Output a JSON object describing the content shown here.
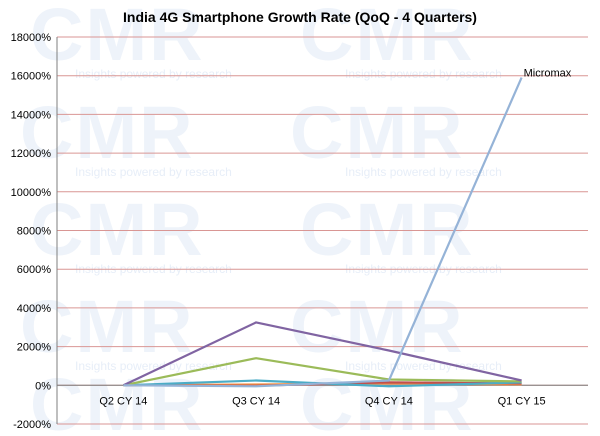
{
  "chart_data": {
    "type": "line",
    "title": "India 4G Smartphone Growth Rate (QoQ - 4 Quarters)",
    "categories": [
      "Q2 CY 14",
      "Q3 CY 14",
      "Q4 CY 14",
      "Q1 CY 15"
    ],
    "ylim": [
      -2000,
      18000
    ],
    "yticks": [
      -2000,
      0,
      2000,
      4000,
      6000,
      8000,
      10000,
      12000,
      14000,
      16000,
      18000
    ],
    "ytick_labels": [
      "-2000%",
      "0%",
      "2000%",
      "4000%",
      "6000%",
      "8000%",
      "10000%",
      "12000%",
      "14000%",
      "16000%",
      "18000%"
    ],
    "grid": true,
    "legend": "none",
    "series": [
      {
        "name": "Micromax",
        "color": "#95b3d7",
        "values": [
          0,
          -50,
          250,
          15900
        ]
      },
      {
        "color": "#8064a2",
        "values": [
          0,
          3250,
          1800,
          250
        ]
      },
      {
        "color": "#9bbb59",
        "values": [
          0,
          1400,
          300,
          200
        ]
      },
      {
        "color": "#4bacc6",
        "values": [
          0,
          250,
          -50,
          150
        ]
      },
      {
        "color": "#c0504d",
        "values": [
          0,
          -20,
          150,
          100
        ]
      },
      {
        "color": "#f79646",
        "values": [
          0,
          40,
          100,
          50
        ]
      }
    ],
    "annotations": [
      {
        "text": "Micromax",
        "series": "Micromax",
        "category": "Q1 CY 15"
      }
    ]
  },
  "watermark": {
    "logo_text": "CMR",
    "tagline": "Insights powered by research"
  }
}
